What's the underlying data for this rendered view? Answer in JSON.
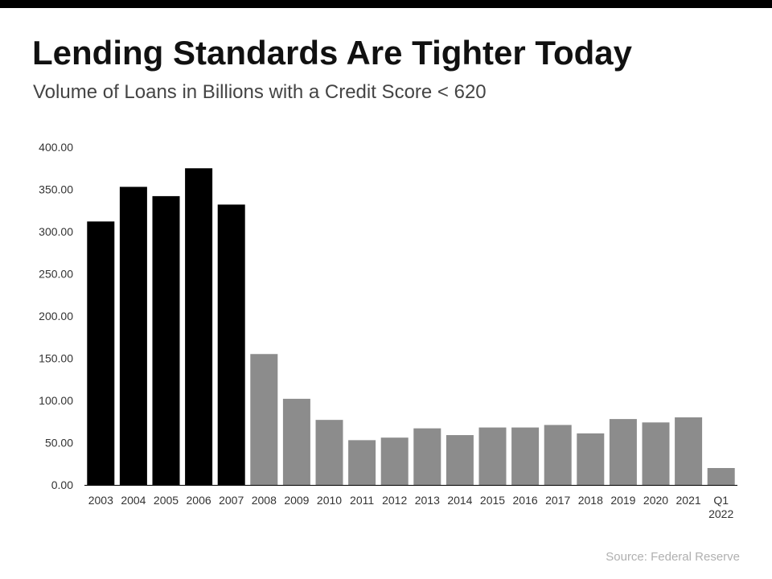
{
  "header": {
    "title": "Lending Standards Are Tighter Today",
    "subtitle": "Volume of Loans in Billions with a Credit Score < 620"
  },
  "footer": {
    "source": "Source: Federal Reserve"
  },
  "colors": {
    "highlight": "#000000",
    "default": "#8c8c8c",
    "axis": "#000000",
    "tick_text": "#333333"
  },
  "chart_data": {
    "type": "bar",
    "title": "Lending Standards Are Tighter Today",
    "subtitle": "Volume of Loans in Billions with a Credit Score < 620",
    "categories": [
      "2003",
      "2004",
      "2005",
      "2006",
      "2007",
      "2008",
      "2009",
      "2010",
      "2011",
      "2012",
      "2013",
      "2014",
      "2015",
      "2016",
      "2017",
      "2018",
      "2019",
      "2020",
      "2021",
      "Q1 2022"
    ],
    "values": [
      312,
      353,
      342,
      375,
      332,
      155,
      102,
      77,
      53,
      56,
      67,
      59,
      68,
      68,
      71,
      61,
      78,
      74,
      80,
      20
    ],
    "highlighted": [
      true,
      true,
      true,
      true,
      true,
      false,
      false,
      false,
      false,
      false,
      false,
      false,
      false,
      false,
      false,
      false,
      false,
      false,
      false,
      false
    ],
    "yticks": [
      "0.00",
      "50.00",
      "100.00",
      "150.00",
      "200.00",
      "250.00",
      "300.00",
      "350.00",
      "400.00"
    ],
    "ylim": [
      0,
      400
    ],
    "xlabel": "",
    "ylabel": "",
    "grid": false,
    "legend": "none"
  }
}
